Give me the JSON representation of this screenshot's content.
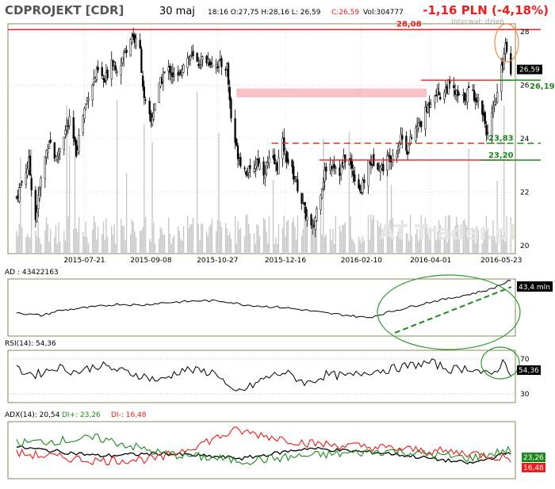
{
  "header": {
    "ticker": "CDPROJEKT [CDR]",
    "date": "30 maj",
    "quote": "18:16  O:27,75  H:28,16  L: 26,59",
    "close": "C:26,59",
    "volume": "Vol:304777",
    "change": "-1,16 PLN (-4,18%)",
    "interval": "Interwał: dzień",
    "watermark": "AT Trader.pl"
  },
  "colors": {
    "price": "#000000",
    "volume": "#c8c8c8",
    "grid": "#bdbdbd",
    "red": "#ee1c1c",
    "green": "#1b8a1b",
    "pink": "#f7b6bd",
    "orange": "#f08a3c",
    "ellipse": "#2a9a2a",
    "panel_border": "#8a8a5a"
  },
  "chart_data": [
    {
      "type": "candlestick",
      "panel": "price",
      "x_ticks": [
        "2015-07-21",
        "2015-09-08",
        "2015-10-27",
        "2015-12-16",
        "2016-02-10",
        "2016-04-01",
        "2016-05-23"
      ],
      "y_ticks": [
        20,
        22,
        24,
        26,
        28
      ],
      "ylim": [
        19.7,
        28.3
      ],
      "price_levels": [
        {
          "label": "28,08",
          "value": 28.08,
          "color": "red"
        },
        {
          "label": "26,19",
          "value": 26.19,
          "color": "green"
        },
        {
          "label": "23,83",
          "value": 23.83,
          "color": "green"
        },
        {
          "label": "23,20",
          "value": 23.2,
          "color": "green"
        }
      ],
      "last_price_label": "26,59",
      "last_price": 26.59,
      "support_resistance": [
        {
          "from": "2015-11-10",
          "to": "2016-03-29",
          "value": 25.88,
          "kind": "zone",
          "low": 25.55
        },
        {
          "from": "2016-03-25",
          "to": "2016-05-30",
          "value": 26.19,
          "kind": "line"
        },
        {
          "from": "2015-12-06",
          "to": "2016-05-30",
          "value": 23.83,
          "kind": "dashed"
        },
        {
          "from": "2016-01-10",
          "to": "2016-05-30",
          "value": 23.2,
          "kind": "line"
        }
      ],
      "close_path": [
        [
          "2015-06-01",
          21.8
        ],
        [
          "2015-06-05",
          22.4
        ],
        [
          "2015-06-10",
          23.1
        ],
        [
          "2015-06-15",
          21.0
        ],
        [
          "2015-06-20",
          22.8
        ],
        [
          "2015-06-25",
          24.0
        ],
        [
          "2015-06-30",
          23.2
        ],
        [
          "2015-07-05",
          24.1
        ],
        [
          "2015-07-10",
          24.6
        ],
        [
          "2015-07-15",
          23.5
        ],
        [
          "2015-07-20",
          24.9
        ],
        [
          "2015-07-25",
          25.9
        ],
        [
          "2015-07-31",
          26.5
        ],
        [
          "2015-08-05",
          26.1
        ],
        [
          "2015-08-10",
          27.0
        ],
        [
          "2015-08-15",
          26.6
        ],
        [
          "2015-08-20",
          27.3
        ],
        [
          "2015-08-25",
          27.9
        ],
        [
          "2015-08-31",
          27.3
        ],
        [
          "2015-09-03",
          25.4
        ],
        [
          "2015-09-08",
          24.6
        ],
        [
          "2015-09-12",
          25.6
        ],
        [
          "2015-09-17",
          26.4
        ],
        [
          "2015-09-22",
          26.6
        ],
        [
          "2015-09-27",
          26.1
        ],
        [
          "2015-10-02",
          26.9
        ],
        [
          "2015-10-07",
          27.1
        ],
        [
          "2015-10-12",
          26.8
        ],
        [
          "2015-10-17",
          27.0
        ],
        [
          "2015-10-22",
          26.9
        ],
        [
          "2015-10-27",
          26.8
        ],
        [
          "2015-11-03",
          26.7
        ],
        [
          "2015-11-06",
          24.8
        ],
        [
          "2015-11-10",
          23.6
        ],
        [
          "2015-11-15",
          22.9
        ],
        [
          "2015-11-20",
          22.7
        ],
        [
          "2015-11-25",
          23.2
        ],
        [
          "2015-11-30",
          22.8
        ],
        [
          "2015-12-05",
          23.2
        ],
        [
          "2015-12-10",
          23.0
        ],
        [
          "2015-12-14",
          23.8
        ],
        [
          "2015-12-19",
          23.0
        ],
        [
          "2015-12-24",
          22.4
        ],
        [
          "2015-12-30",
          21.3
        ],
        [
          "2016-01-05",
          20.5
        ],
        [
          "2016-01-10",
          21.9
        ],
        [
          "2016-01-15",
          22.9
        ],
        [
          "2016-01-20",
          23.1
        ],
        [
          "2016-01-25",
          22.8
        ],
        [
          "2016-01-30",
          23.4
        ],
        [
          "2016-02-05",
          22.6
        ],
        [
          "2016-02-10",
          22.0
        ],
        [
          "2016-02-15",
          23.1
        ],
        [
          "2016-02-20",
          23.2
        ],
        [
          "2016-02-25",
          22.9
        ],
        [
          "2016-03-01",
          23.3
        ],
        [
          "2016-03-06",
          23.5
        ],
        [
          "2016-03-10",
          24.1
        ],
        [
          "2016-03-15",
          23.6
        ],
        [
          "2016-03-20",
          24.3
        ],
        [
          "2016-03-25",
          24.6
        ],
        [
          "2016-03-30",
          25.2
        ],
        [
          "2016-04-04",
          25.8
        ],
        [
          "2016-04-09",
          25.6
        ],
        [
          "2016-04-14",
          26.0
        ],
        [
          "2016-04-19",
          25.7
        ],
        [
          "2016-04-24",
          25.4
        ],
        [
          "2016-04-29",
          25.8
        ],
        [
          "2016-05-04",
          25.6
        ],
        [
          "2016-05-09",
          25.1
        ],
        [
          "2016-05-13",
          24.1
        ],
        [
          "2016-05-18",
          25.2
        ],
        [
          "2016-05-21",
          25.9
        ],
        [
          "2016-05-24",
          26.9
        ],
        [
          "2016-05-26",
          27.6
        ],
        [
          "2016-05-30",
          26.6
        ]
      ]
    },
    {
      "type": "line",
      "panel": "AD",
      "title": "AD : 43422163",
      "last_label": "43,4 mln",
      "series": [
        {
          "name": "AD",
          "points": [
            [
              "2015-06-01",
              0.42
            ],
            [
              "2015-06-10",
              0.38
            ],
            [
              "2015-06-20",
              0.36
            ],
            [
              "2015-07-01",
              0.44
            ],
            [
              "2015-07-15",
              0.48
            ],
            [
              "2015-08-01",
              0.52
            ],
            [
              "2015-08-15",
              0.56
            ],
            [
              "2015-09-01",
              0.54
            ],
            [
              "2015-09-15",
              0.58
            ],
            [
              "2015-10-01",
              0.6
            ],
            [
              "2015-10-15",
              0.62
            ],
            [
              "2015-11-01",
              0.61
            ],
            [
              "2015-11-15",
              0.55
            ],
            [
              "2015-12-01",
              0.52
            ],
            [
              "2015-12-15",
              0.5
            ],
            [
              "2016-01-01",
              0.45
            ],
            [
              "2016-01-15",
              0.4
            ],
            [
              "2016-02-01",
              0.36
            ],
            [
              "2016-02-15",
              0.32
            ],
            [
              "2016-03-01",
              0.42
            ],
            [
              "2016-03-15",
              0.5
            ],
            [
              "2016-04-01",
              0.6
            ],
            [
              "2016-04-15",
              0.66
            ],
            [
              "2016-05-01",
              0.74
            ],
            [
              "2016-05-15",
              0.82
            ],
            [
              "2016-05-30",
              0.98
            ]
          ]
        }
      ]
    },
    {
      "type": "line",
      "panel": "RSI",
      "title": "RSI(14): 54,36",
      "last_label": "54,36",
      "y_ticks": [
        30,
        70
      ],
      "ylim": [
        20,
        80
      ],
      "series": [
        {
          "name": "RSI",
          "points": [
            [
              "2015-06-01",
              58
            ],
            [
              "2015-06-15",
              52
            ],
            [
              "2015-07-01",
              61
            ],
            [
              "2015-07-15",
              55
            ],
            [
              "2015-08-01",
              63
            ],
            [
              "2015-08-15",
              57
            ],
            [
              "2015-09-01",
              51
            ],
            [
              "2015-09-15",
              45
            ],
            [
              "2015-10-01",
              58
            ],
            [
              "2015-10-15",
              56
            ],
            [
              "2015-10-27",
              54
            ],
            [
              "2015-11-07",
              30
            ],
            [
              "2015-11-20",
              38
            ],
            [
              "2015-12-01",
              48
            ],
            [
              "2015-12-15",
              55
            ],
            [
              "2016-01-01",
              42
            ],
            [
              "2016-01-15",
              52
            ],
            [
              "2016-02-01",
              50
            ],
            [
              "2016-02-15",
              56
            ],
            [
              "2016-03-01",
              58
            ],
            [
              "2016-03-15",
              62
            ],
            [
              "2016-04-01",
              66
            ],
            [
              "2016-04-15",
              58
            ],
            [
              "2016-05-01",
              60
            ],
            [
              "2016-05-15",
              50
            ],
            [
              "2016-05-25",
              68
            ],
            [
              "2016-05-30",
              54
            ]
          ]
        }
      ]
    },
    {
      "type": "line",
      "panel": "ADX",
      "title": "ADX(14): 20,54",
      "legend": [
        "ADX(14): 20,54",
        "DI+: 23,26",
        "DI-: 16,48"
      ],
      "last_labels": [
        "23,26",
        "16,48"
      ],
      "series": [
        {
          "name": "ADX",
          "points": [
            [
              "2015-06-01",
              25
            ],
            [
              "2015-08-01",
              18
            ],
            [
              "2015-09-15",
              20
            ],
            [
              "2015-11-15",
              16
            ],
            [
              "2016-01-01",
              24
            ],
            [
              "2016-03-01",
              20
            ],
            [
              "2016-05-01",
              12
            ],
            [
              "2016-05-30",
              21
            ]
          ]
        },
        {
          "name": "DI+",
          "points": [
            [
              "2015-06-01",
              28
            ],
            [
              "2015-08-01",
              32
            ],
            [
              "2015-09-15",
              20
            ],
            [
              "2015-11-15",
              14
            ],
            [
              "2016-01-01",
              18
            ],
            [
              "2016-03-01",
              22
            ],
            [
              "2016-05-01",
              16
            ],
            [
              "2016-05-30",
              23
            ]
          ]
        },
        {
          "name": "DI-",
          "points": [
            [
              "2015-06-01",
              20
            ],
            [
              "2015-08-01",
              14
            ],
            [
              "2015-09-15",
              16
            ],
            [
              "2015-11-10",
              38
            ],
            [
              "2016-01-01",
              28
            ],
            [
              "2016-03-01",
              24
            ],
            [
              "2016-05-01",
              20
            ],
            [
              "2016-05-30",
              16
            ]
          ]
        }
      ]
    }
  ]
}
